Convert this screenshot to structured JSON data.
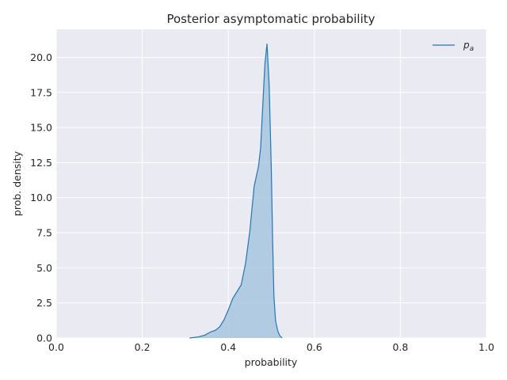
{
  "chart_data": {
    "type": "area",
    "title": "Posterior asymptomatic probability",
    "xlabel": "probability",
    "ylabel": "prob. density",
    "xlim": [
      0.0,
      1.0
    ],
    "ylim": [
      0.0,
      22.0
    ],
    "x_ticks": [
      "0.0",
      "0.2",
      "0.4",
      "0.6",
      "0.8",
      "1.0"
    ],
    "y_ticks": [
      "0.0",
      "2.5",
      "5.0",
      "7.5",
      "10.0",
      "12.5",
      "15.0",
      "17.5",
      "20.0"
    ],
    "grid": true,
    "legend_position": "top-right",
    "colors": {
      "line": "#1f77b4",
      "fill": "#a7c6df",
      "background": "#eaeaf2",
      "grid": "#ffffff"
    },
    "series": [
      {
        "name": "p_a",
        "name_main": "p",
        "name_sub": "a",
        "x": [
          0.31,
          0.33,
          0.345,
          0.36,
          0.37,
          0.38,
          0.39,
          0.4,
          0.41,
          0.42,
          0.43,
          0.44,
          0.45,
          0.46,
          0.47,
          0.475,
          0.48,
          0.485,
          0.49,
          0.495,
          0.5,
          0.503,
          0.506,
          0.51,
          0.515,
          0.52,
          0.525
        ],
        "y": [
          0.0,
          0.08,
          0.2,
          0.45,
          0.55,
          0.8,
          1.3,
          2.0,
          2.8,
          3.3,
          3.8,
          5.3,
          7.6,
          10.8,
          12.2,
          13.5,
          16.5,
          19.5,
          20.95,
          18.0,
          12.0,
          7.0,
          3.0,
          1.2,
          0.5,
          0.15,
          0.02
        ]
      }
    ]
  }
}
